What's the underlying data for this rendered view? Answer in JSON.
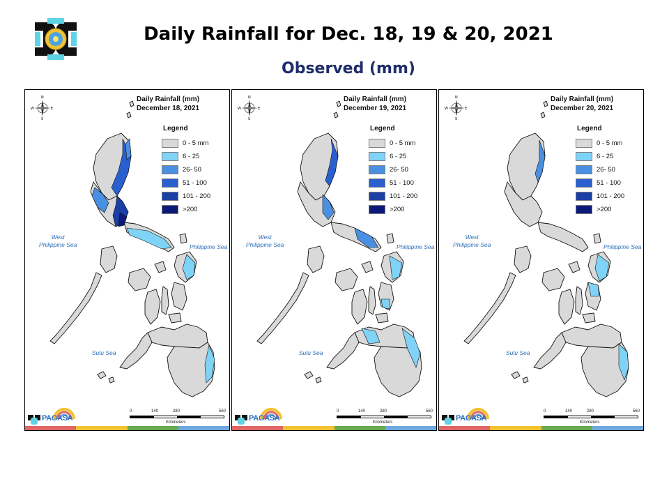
{
  "header": {
    "title": "Daily Rainfall for Dec. 18, 19 & 20, 2021",
    "subtitle": "Observed (mm)",
    "logo_icon": "pagasa-seal-icon"
  },
  "colors": {
    "title": "#000000",
    "subtitle": "#1f2d6b",
    "land_dry": "#d9d9d9",
    "class_6_25": "#7fd3f7",
    "class_26_50": "#4a90e2",
    "class_51_100": "#2a5fd0",
    "class_101_200": "#1c3fa6",
    "class_200_plus": "#0b1a7a",
    "sea_label": "#2c6fb8",
    "stripe": [
      "#e06666",
      "#f1c232",
      "#6aa84f",
      "#6fa8dc"
    ]
  },
  "legend_items": [
    {
      "label": "0 - 5 mm",
      "color": "#d9d9d9"
    },
    {
      "label": "6 - 25",
      "color": "#7fd3f7"
    },
    {
      "label": "26- 50",
      "color": "#4a90e2"
    },
    {
      "label": "51 - 100",
      "color": "#2a5fd0"
    },
    {
      "label": "101 - 200",
      "color": "#1c3fa6"
    },
    {
      "label": ">200",
      "color": "#0b1a7a"
    }
  ],
  "panels": [
    {
      "map_title": "Daily Rainfall (mm)",
      "date": "December 18, 2021",
      "legend_title": "Legend",
      "seas": {
        "west": "West\nPhilippine Sea",
        "phil": "Philippine Sea",
        "sulu": "Sulu Sea"
      },
      "scale_ticks": [
        "0",
        "140",
        "280",
        "560"
      ],
      "scale_unit": "Kilometers",
      "brand": "PAGASA",
      "rain_level": "heavy-north"
    },
    {
      "map_title": "Daily Rainfall (mm)",
      "date": "December 19, 2021",
      "legend_title": "Legend",
      "seas": {
        "west": "West\nPhilippine Sea",
        "phil": "Philippine Sea",
        "sulu": "Sulu Sea"
      },
      "scale_ticks": [
        "0",
        "140",
        "280",
        "560"
      ],
      "scale_unit": "Kilometers",
      "brand": "PAGASA",
      "rain_level": "moderate-north"
    },
    {
      "map_title": "Daily Rainfall (mm)",
      "date": "December 20, 2021",
      "legend_title": "Legend",
      "seas": {
        "west": "West\nPhilippine Sea",
        "phil": "Philippine Sea",
        "sulu": "Sulu Sea"
      },
      "scale_ticks": [
        "0",
        "140",
        "280",
        "560"
      ],
      "scale_unit": "Kilometers",
      "brand": "PAGASA",
      "rain_level": "light-east"
    }
  ]
}
